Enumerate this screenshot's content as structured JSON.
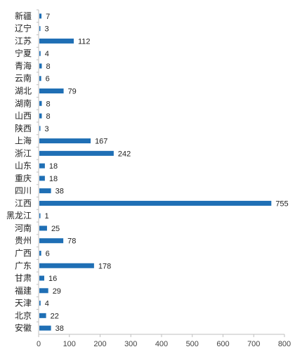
{
  "chart_data": {
    "type": "bar",
    "orientation": "horizontal",
    "categories": [
      "新疆",
      "辽宁",
      "江苏",
      "宁夏",
      "青海",
      "云南",
      "湖北",
      "湖南",
      "山西",
      "陕西",
      "上海",
      "浙江",
      "山东",
      "重庆",
      "四川",
      "江西",
      "黑龙江",
      "河南",
      "贵州",
      "广西",
      "广东",
      "甘肃",
      "福建",
      "天津",
      "北京",
      "安徽"
    ],
    "values": [
      7,
      3,
      112,
      4,
      8,
      6,
      79,
      8,
      8,
      3,
      167,
      242,
      18,
      18,
      38,
      755,
      1,
      25,
      78,
      6,
      178,
      16,
      29,
      4,
      22,
      38
    ],
    "xlim": [
      0,
      800
    ],
    "xticks": [
      0,
      100,
      200,
      300,
      400,
      500,
      600,
      700,
      800
    ],
    "bar_color": "#1f6fb5",
    "grid": false,
    "legend": "none"
  }
}
